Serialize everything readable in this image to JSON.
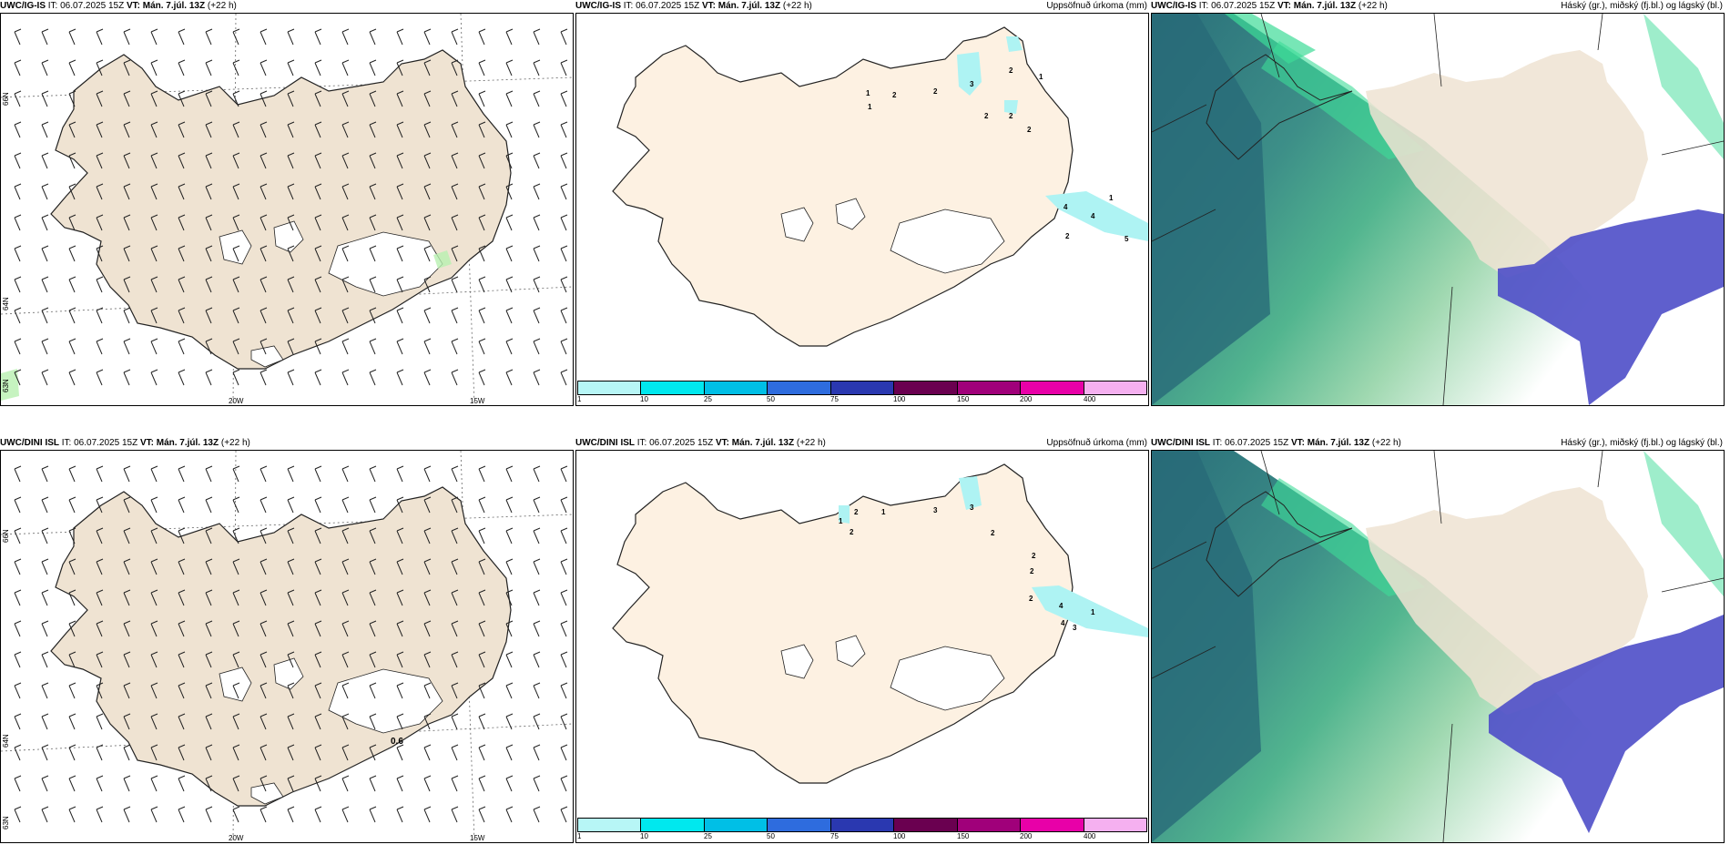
{
  "rows": [
    {
      "model": "UWC/IG-IS",
      "it": "IT: 06.07.2025 15Z",
      "vt_label": "VT:",
      "vt": "Mán. 7.júl. 13Z",
      "lead": "(+22 h)",
      "precip_labels": [
        "1",
        "1",
        "2",
        "2",
        "3",
        "2",
        "1",
        "2",
        "2",
        "2",
        "1",
        "4",
        "4",
        "2",
        "5"
      ],
      "lon_labels": [
        "20W",
        "15W"
      ],
      "lat_labels": [
        "66N",
        "64N",
        "63N"
      ]
    },
    {
      "model": "UWC/DINI ISL",
      "it": "IT: 06.07.2025 15Z",
      "vt_label": "VT:",
      "vt": "Mán. 7.júl. 13Z",
      "lead": "(+22 h)",
      "precip_labels": [
        "2",
        "1",
        "2",
        "1",
        "3",
        "3",
        "2",
        "2",
        "2",
        "2",
        "4",
        "4",
        "1",
        "3"
      ],
      "wind_value": "0.6",
      "lon_labels": [
        "20W",
        "15W"
      ],
      "lat_labels": [
        "66N",
        "64N",
        "63N"
      ]
    }
  ],
  "precip_title": "Uppsöfnuð úrkoma (mm)",
  "cloud_title": "Háský (gr.), miðský (fj.bl.) og lágský (bl.)",
  "colorbar": {
    "colors": [
      "#b7f6f6",
      "#00e8ee",
      "#00bfe6",
      "#2e6cde",
      "#2a38b0",
      "#6a0050",
      "#a0007a",
      "#e800a8",
      "#f5b0f0"
    ],
    "labels": [
      "1",
      "10",
      "25",
      "50",
      "75",
      "100",
      "150",
      "200",
      "400"
    ]
  },
  "map_colors": {
    "land": "#efe3d2",
    "land_precip": "#fdf1e2",
    "glacier": "#ffffff",
    "precip": "#aef3f3"
  }
}
